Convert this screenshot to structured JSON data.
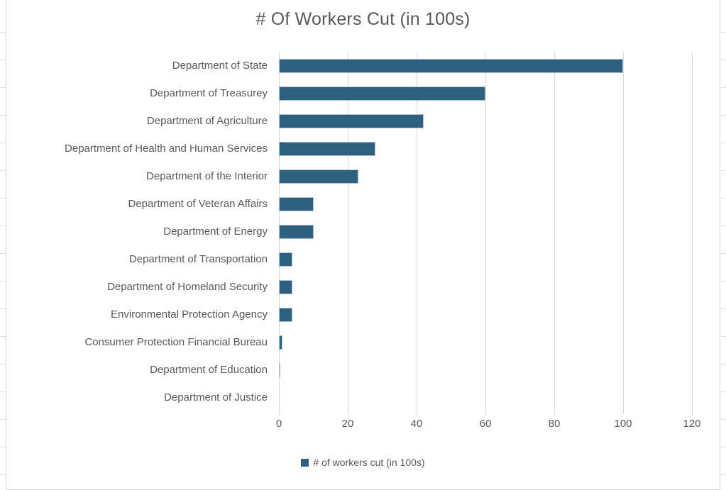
{
  "title": "# Of Workers Cut (in 100s)",
  "legend": {
    "label": "# of workers cut (in 100s)",
    "marker": "square"
  },
  "colors": {
    "bar": "#2E5F7E",
    "bar_border": "#A9C4D8",
    "gridline": "#D9D9D9",
    "axis_text": "#595959",
    "frame": "#CFCFCF"
  },
  "chart_data": {
    "type": "bar",
    "orientation": "horizontal",
    "title": "# Of Workers Cut (in 100s)",
    "categories": [
      "Department of State",
      "Department of Treasurey",
      "Department of Agriculture",
      "Department of Health and Human Services",
      "Department of the Interior",
      "Department of Veteran Affairs",
      "Department of Energy",
      "Department of Transportation",
      "Department of Homeland Security",
      "Environmental Protection Agency",
      "Consumer Protection Financial Bureau",
      "Department of Education",
      "Department of Justice"
    ],
    "series": [
      {
        "name": "# of workers cut (in 100s)",
        "values": [
          100,
          60,
          42,
          28,
          23,
          10,
          10,
          4,
          4,
          4,
          1,
          0.5,
          0
        ]
      }
    ],
    "xlabel": "",
    "ylabel": "",
    "xlim": [
      0,
      120
    ],
    "xticks": [
      0,
      20,
      40,
      60,
      80,
      100,
      120
    ],
    "grid": "vertical-major",
    "legend_position": "bottom-center"
  }
}
